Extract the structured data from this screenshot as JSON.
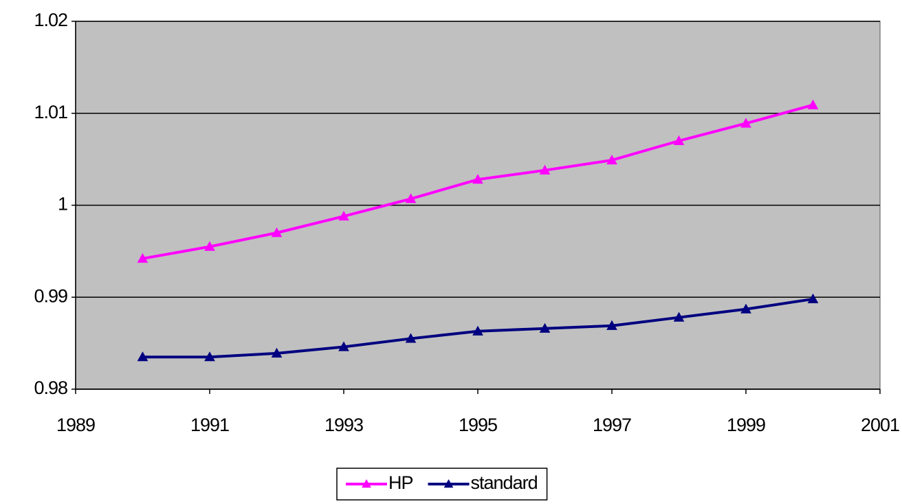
{
  "chart_data": {
    "type": "line",
    "x": [
      1990,
      1991,
      1992,
      1993,
      1994,
      1995,
      1996,
      1997,
      1998,
      1999,
      2000
    ],
    "series": [
      {
        "name": "HP",
        "color": "#ff00ff",
        "values": [
          0.9942,
          0.9955,
          0.997,
          0.9988,
          1.0007,
          1.0028,
          1.0038,
          1.0049,
          1.007,
          1.0089,
          1.0109
        ]
      },
      {
        "name": "standard",
        "color": "#000080",
        "values": [
          0.9835,
          0.9835,
          0.9839,
          0.9846,
          0.9855,
          0.9863,
          0.9866,
          0.9869,
          0.9878,
          0.9887,
          0.9898
        ]
      }
    ],
    "xlim": [
      1989,
      2001
    ],
    "xticks": [
      1989,
      1991,
      1993,
      1995,
      1997,
      1999,
      2001
    ],
    "ylim": [
      0.98,
      1.02
    ],
    "yticks": [
      0.98,
      0.99,
      1,
      1.01,
      1.02
    ],
    "grid": true,
    "legend": "bottom",
    "plot_background": "#c0c0c0"
  }
}
